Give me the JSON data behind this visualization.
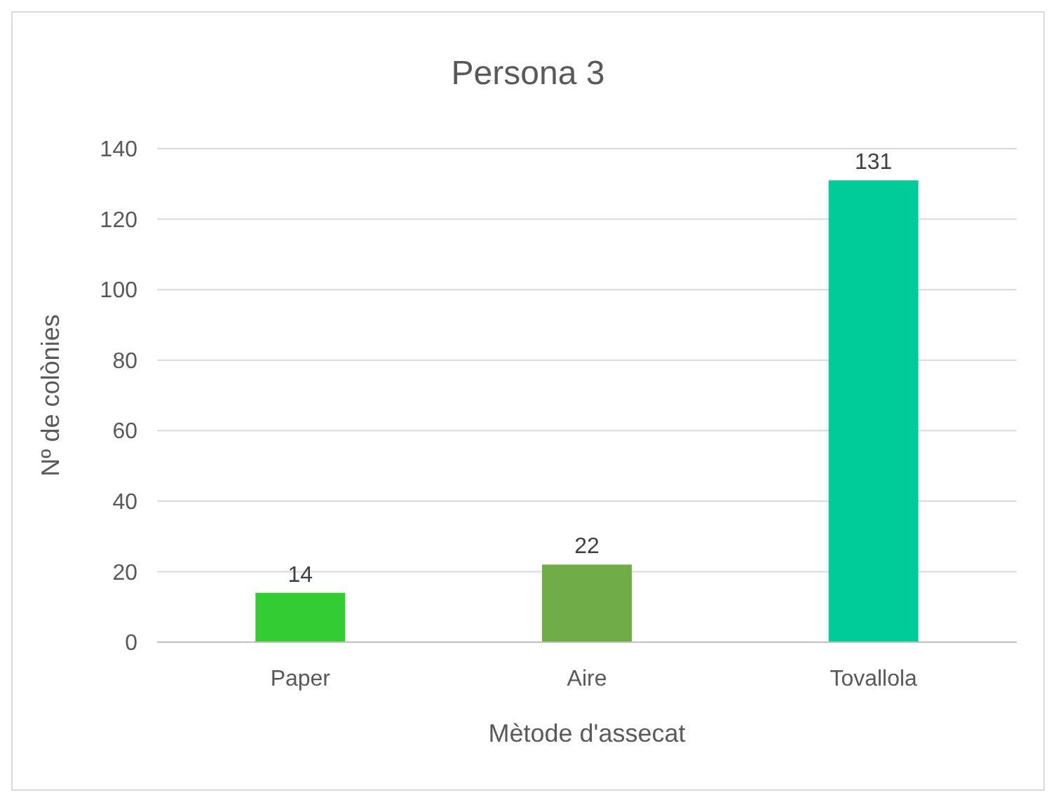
{
  "chart_data": {
    "type": "bar",
    "title": "Persona 3",
    "xlabel": "Mètode d'assecat",
    "ylabel": "Nº de colònies",
    "categories": [
      "Paper",
      "Aire",
      "Tovallola"
    ],
    "values": [
      14,
      22,
      131
    ],
    "colors": [
      "#33cc33",
      "#70ad47",
      "#00cc99"
    ],
    "ylim": [
      0,
      140
    ],
    "yticks": [
      0,
      20,
      40,
      60,
      80,
      100,
      120,
      140
    ],
    "grid": "y",
    "data_labels": true
  }
}
